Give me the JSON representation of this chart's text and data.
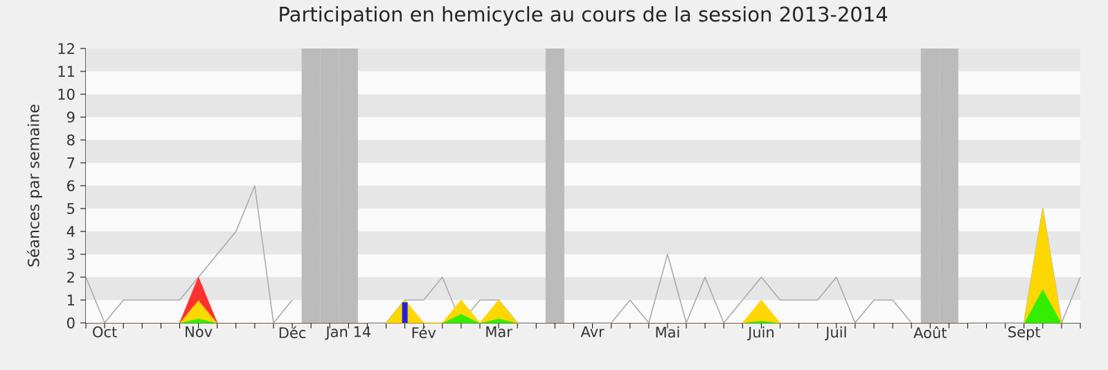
{
  "chart_data": {
    "type": "line",
    "title": "Participation en hemicycle au cours de la session 2013-2014",
    "ylabel": "Séances par semaine",
    "categories": [
      null,
      "Oct",
      null,
      null,
      null,
      null,
      "Nov",
      null,
      null,
      null,
      null,
      "Déc",
      null,
      null,
      "Jan 14",
      null,
      null,
      null,
      "Fév",
      null,
      null,
      null,
      "Mar",
      null,
      null,
      null,
      null,
      "Avr",
      null,
      null,
      null,
      "Mai",
      null,
      null,
      null,
      null,
      "Juin",
      null,
      null,
      null,
      "Juil",
      null,
      null,
      null,
      null,
      "Août",
      null,
      null,
      null,
      null,
      "Sept",
      null,
      null,
      null
    ],
    "stacked": true,
    "series": [
      {
        "color": "#aaaaaa",
        "values": [
          2,
          0,
          1,
          1,
          1,
          1,
          2,
          3,
          4,
          6,
          0,
          1,
          null,
          null,
          null,
          0,
          0,
          1,
          1,
          2,
          0,
          1,
          1,
          0,
          0,
          null,
          0,
          0,
          0,
          1,
          0,
          3,
          0,
          2,
          0,
          1,
          2,
          1,
          1,
          1,
          2,
          0,
          1,
          1,
          0,
          null,
          null,
          0,
          0,
          0,
          0,
          5,
          0,
          2
        ]
      },
      {
        "type": "area",
        "color": "#33ee00",
        "values": [
          null,
          null,
          null,
          null,
          null,
          0,
          0.2,
          0,
          null,
          null,
          null,
          null,
          null,
          null,
          null,
          null,
          null,
          null,
          null,
          0,
          0.4,
          0,
          0.2,
          0,
          null,
          null,
          null,
          null,
          null,
          null,
          null,
          null,
          null,
          null,
          null,
          0,
          0.1,
          0,
          null,
          null,
          null,
          null,
          null,
          null,
          null,
          null,
          null,
          null,
          null,
          null,
          0,
          1.5,
          0,
          null
        ]
      },
      {
        "type": "area",
        "color": "#ffd700",
        "values": [
          null,
          null,
          null,
          null,
          null,
          0,
          0.8,
          0,
          null,
          null,
          null,
          null,
          null,
          null,
          null,
          null,
          0,
          1,
          0,
          0,
          0.6,
          0,
          0.8,
          0,
          null,
          null,
          null,
          null,
          null,
          null,
          null,
          null,
          null,
          null,
          null,
          0,
          0.9,
          0,
          null,
          null,
          null,
          null,
          null,
          null,
          null,
          null,
          null,
          null,
          null,
          null,
          0,
          3.5,
          0,
          null
        ]
      },
      {
        "type": "area",
        "color": "#ff3030",
        "values": [
          null,
          null,
          null,
          null,
          null,
          0,
          1,
          0,
          null,
          null,
          null,
          null,
          null,
          null,
          null,
          null,
          null,
          null,
          null,
          null,
          null,
          null,
          null,
          null,
          null,
          null,
          null,
          null,
          null,
          null,
          null,
          null,
          null,
          null,
          null,
          null,
          null,
          null,
          null,
          null,
          null,
          null,
          null,
          null,
          null,
          null,
          null,
          null,
          null,
          null,
          null,
          null,
          null,
          null
        ]
      },
      {
        "type": "bar",
        "color": "#2222dd",
        "values": [
          null,
          null,
          null,
          null,
          null,
          null,
          null,
          null,
          null,
          null,
          null,
          null,
          null,
          null,
          null,
          null,
          null,
          0.9,
          null,
          null,
          null,
          null,
          null,
          null,
          null,
          null,
          null,
          null,
          null,
          null,
          null,
          null,
          null,
          null,
          null,
          null,
          null,
          null,
          null,
          null,
          null,
          null,
          null,
          null,
          null,
          null,
          null,
          null,
          null,
          null,
          null,
          null,
          null,
          null
        ]
      }
    ],
    "ylim": [
      0,
      12
    ],
    "yticks": [
      0,
      1,
      2,
      3,
      4,
      5,
      6,
      7,
      8,
      9,
      10,
      11,
      12
    ]
  }
}
